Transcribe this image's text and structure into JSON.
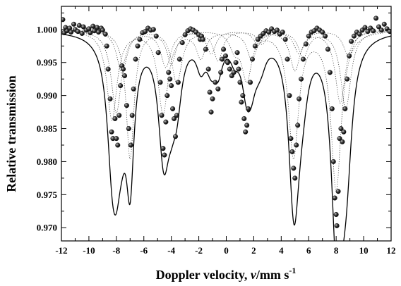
{
  "chart_data": {
    "type": "scatter",
    "xlabel": "Doppler velocity, ",
    "xlabel_var": "v",
    "xlabel_unit": "/mm s",
    "xlabel_sup": "-1",
    "ylabel": "Relative transmission",
    "xlim": [
      -12,
      12
    ],
    "ylim": [
      0.968,
      1.0035
    ],
    "x_ticks": [
      -12,
      -10,
      -8,
      -6,
      -4,
      -2,
      0,
      2,
      4,
      6,
      8,
      10,
      12
    ],
    "x_tick_labels": [
      "-12",
      "-10",
      "-8",
      "-6",
      "-4",
      "-2",
      "0",
      "2",
      "4",
      "6",
      "8",
      "10",
      "12"
    ],
    "y_ticks": [
      0.97,
      0.975,
      0.98,
      0.985,
      0.99,
      0.995,
      1.0
    ],
    "y_tick_labels": [
      "0.970",
      "0.975",
      "0.980",
      "0.985",
      "0.990",
      "0.995",
      "1.000"
    ],
    "fit_components": [
      {
        "lines": [
          [
            -8.32,
            0.0135,
            0.45
          ],
          [
            -4.6,
            0.0125,
            0.45
          ],
          [
            -1.85,
            0.004,
            0.4
          ],
          [
            1.85,
            0.004,
            0.4
          ],
          [
            4.9,
            0.019,
            0.45
          ],
          [
            8.0,
            0.024,
            0.45
          ]
        ]
      },
      {
        "lines": [
          [
            -8.0,
            0.0125,
            0.45
          ],
          [
            -4.4,
            0.0055,
            0.45
          ],
          [
            -1.1,
            0.0035,
            0.4
          ],
          [
            2.3,
            0.002,
            0.4
          ],
          [
            5.0,
            0.006,
            0.45
          ],
          [
            8.3,
            0.011,
            0.45
          ]
        ]
      },
      {
        "lines": [
          [
            -7.6,
            0.0065,
            0.45
          ],
          [
            -3.6,
            0.008,
            0.45
          ],
          [
            -0.6,
            0.0045,
            0.4
          ],
          [
            2.6,
            0.002,
            0.4
          ],
          [
            5.6,
            0.004,
            0.45
          ],
          [
            8.7,
            0.012,
            0.45
          ]
        ]
      },
      {
        "lines": [
          [
            -7.0,
            0.0195,
            0.35
          ],
          [
            -4.0,
            0.005,
            0.4
          ],
          [
            0.6,
            0.0025,
            0.4
          ],
          [
            1.5,
            0.0075,
            0.45
          ],
          [
            5.3,
            0.0035,
            0.45
          ],
          [
            8.9,
            0.004,
            0.45
          ]
        ]
      }
    ],
    "points": [
      {
        "x": -11.9,
        "y": 1.0015
      },
      {
        "x": -11.8,
        "y": 0.9995
      },
      {
        "x": -11.7,
        "y": 1.0003
      },
      {
        "x": -11.6,
        "y": 0.9998
      },
      {
        "x": -11.4,
        "y": 1.0002
      },
      {
        "x": -11.3,
        "y": 0.9996
      },
      {
        "x": -11.1,
        "y": 1.0008
      },
      {
        "x": -11.0,
        "y": 1.0
      },
      {
        "x": -10.8,
        "y": 0.9997
      },
      {
        "x": -10.7,
        "y": 1.0006
      },
      {
        "x": -10.5,
        "y": 0.9994
      },
      {
        "x": -10.4,
        "y": 1.0004
      },
      {
        "x": -10.2,
        "y": 0.9999
      },
      {
        "x": -10.0,
        "y": 1.0001
      },
      {
        "x": -9.9,
        "y": 0.9995
      },
      {
        "x": -9.7,
        "y": 1.0005
      },
      {
        "x": -9.6,
        "y": 0.9998
      },
      {
        "x": -9.4,
        "y": 1.0003
      },
      {
        "x": -9.3,
        "y": 0.9996
      },
      {
        "x": -9.1,
        "y": 1.0002
      },
      {
        "x": -9.0,
        "y": 0.9999
      },
      {
        "x": -8.8,
        "y": 0.9993
      },
      {
        "x": -8.7,
        "y": 0.9975
      },
      {
        "x": -8.6,
        "y": 0.994
      },
      {
        "x": -8.45,
        "y": 0.9895
      },
      {
        "x": -8.35,
        "y": 0.9845
      },
      {
        "x": -8.25,
        "y": 0.9835
      },
      {
        "x": -8.1,
        "y": 0.9865
      },
      {
        "x": -8.0,
        "y": 0.9835
      },
      {
        "x": -7.9,
        "y": 0.9825
      },
      {
        "x": -7.8,
        "y": 0.987
      },
      {
        "x": -7.7,
        "y": 0.9915
      },
      {
        "x": -7.6,
        "y": 0.9945
      },
      {
        "x": -7.5,
        "y": 0.994
      },
      {
        "x": -7.4,
        "y": 0.993
      },
      {
        "x": -7.25,
        "y": 0.9885
      },
      {
        "x": -7.1,
        "y": 0.985
      },
      {
        "x": -6.95,
        "y": 0.9825
      },
      {
        "x": -6.85,
        "y": 0.987
      },
      {
        "x": -6.75,
        "y": 0.991
      },
      {
        "x": -6.6,
        "y": 0.9955
      },
      {
        "x": -6.45,
        "y": 0.9975
      },
      {
        "x": -6.3,
        "y": 0.9985
      },
      {
        "x": -6.1,
        "y": 0.9995
      },
      {
        "x": -5.9,
        "y": 0.9997
      },
      {
        "x": -5.7,
        "y": 1.0002
      },
      {
        "x": -5.5,
        "y": 0.9999
      },
      {
        "x": -5.3,
        "y": 1.0
      },
      {
        "x": -5.1,
        "y": 0.999
      },
      {
        "x": -4.95,
        "y": 0.9965
      },
      {
        "x": -4.8,
        "y": 0.992
      },
      {
        "x": -4.7,
        "y": 0.987
      },
      {
        "x": -4.6,
        "y": 0.982
      },
      {
        "x": -4.5,
        "y": 0.981
      },
      {
        "x": -4.4,
        "y": 0.986
      },
      {
        "x": -4.3,
        "y": 0.99
      },
      {
        "x": -4.2,
        "y": 0.9935
      },
      {
        "x": -4.1,
        "y": 0.9925
      },
      {
        "x": -4.0,
        "y": 0.9915
      },
      {
        "x": -3.9,
        "y": 0.988
      },
      {
        "x": -3.8,
        "y": 0.9865
      },
      {
        "x": -3.7,
        "y": 0.9838
      },
      {
        "x": -3.6,
        "y": 0.987
      },
      {
        "x": -3.5,
        "y": 0.992
      },
      {
        "x": -3.4,
        "y": 0.9955
      },
      {
        "x": -3.2,
        "y": 0.998
      },
      {
        "x": -3.0,
        "y": 0.9992
      },
      {
        "x": -2.8,
        "y": 0.9998
      },
      {
        "x": -2.6,
        "y": 1.0001
      },
      {
        "x": -2.4,
        "y": 0.9999
      },
      {
        "x": -2.2,
        "y": 0.9996
      },
      {
        "x": -2.0,
        "y": 0.9992
      },
      {
        "x": -1.9,
        "y": 0.9985
      },
      {
        "x": -1.8,
        "y": 0.999
      },
      {
        "x": -1.7,
        "y": 0.9985
      },
      {
        "x": -1.5,
        "y": 0.997
      },
      {
        "x": -1.3,
        "y": 0.994
      },
      {
        "x": -1.2,
        "y": 0.9905
      },
      {
        "x": -1.1,
        "y": 0.9875
      },
      {
        "x": -1.0,
        "y": 0.9895
      },
      {
        "x": -0.8,
        "y": 0.992
      },
      {
        "x": -0.6,
        "y": 0.991
      },
      {
        "x": -0.4,
        "y": 0.9935
      },
      {
        "x": -0.3,
        "y": 0.9955
      },
      {
        "x": -0.2,
        "y": 0.997
      },
      {
        "x": -0.05,
        "y": 0.996
      },
      {
        "x": 0.1,
        "y": 0.995
      },
      {
        "x": 0.25,
        "y": 0.994
      },
      {
        "x": 0.4,
        "y": 0.993
      },
      {
        "x": 0.55,
        "y": 0.9935
      },
      {
        "x": 0.7,
        "y": 0.995
      },
      {
        "x": 0.8,
        "y": 0.9965
      },
      {
        "x": 0.9,
        "y": 0.994
      },
      {
        "x": 1.0,
        "y": 0.992
      },
      {
        "x": 1.1,
        "y": 0.989
      },
      {
        "x": 1.2,
        "y": 0.99
      },
      {
        "x": 1.3,
        "y": 0.9865
      },
      {
        "x": 1.4,
        "y": 0.9845
      },
      {
        "x": 1.5,
        "y": 0.9855
      },
      {
        "x": 1.6,
        "y": 0.988
      },
      {
        "x": 1.75,
        "y": 0.992
      },
      {
        "x": 1.9,
        "y": 0.9955
      },
      {
        "x": 2.1,
        "y": 0.9975
      },
      {
        "x": 2.3,
        "y": 0.9985
      },
      {
        "x": 2.5,
        "y": 0.999
      },
      {
        "x": 2.7,
        "y": 0.9994
      },
      {
        "x": 2.9,
        "y": 0.9998
      },
      {
        "x": 3.1,
        "y": 0.9996
      },
      {
        "x": 3.3,
        "y": 1.0001
      },
      {
        "x": 3.5,
        "y": 0.9997
      },
      {
        "x": 3.7,
        "y": 0.9999
      },
      {
        "x": 3.9,
        "y": 0.9993
      },
      {
        "x": 4.1,
        "y": 0.9996
      },
      {
        "x": 4.3,
        "y": 0.9985
      },
      {
        "x": 4.45,
        "y": 0.9955
      },
      {
        "x": 4.6,
        "y": 0.99
      },
      {
        "x": 4.7,
        "y": 0.9835
      },
      {
        "x": 4.8,
        "y": 0.9815
      },
      {
        "x": 4.9,
        "y": 0.979
      },
      {
        "x": 5.0,
        "y": 0.9775
      },
      {
        "x": 5.1,
        "y": 0.9825
      },
      {
        "x": 5.2,
        "y": 0.9855
      },
      {
        "x": 5.3,
        "y": 0.9895
      },
      {
        "x": 5.45,
        "y": 0.9925
      },
      {
        "x": 5.6,
        "y": 0.9955
      },
      {
        "x": 5.8,
        "y": 0.9978
      },
      {
        "x": 6.0,
        "y": 0.999
      },
      {
        "x": 6.2,
        "y": 0.9996
      },
      {
        "x": 6.4,
        "y": 0.9998
      },
      {
        "x": 6.6,
        "y": 1.0002
      },
      {
        "x": 6.8,
        "y": 0.9999
      },
      {
        "x": 7.0,
        "y": 0.9996
      },
      {
        "x": 7.2,
        "y": 0.999
      },
      {
        "x": 7.4,
        "y": 0.997
      },
      {
        "x": 7.55,
        "y": 0.9935
      },
      {
        "x": 7.7,
        "y": 0.988
      },
      {
        "x": 7.8,
        "y": 0.98
      },
      {
        "x": 7.9,
        "y": 0.9745
      },
      {
        "x": 8.0,
        "y": 0.972
      },
      {
        "x": 8.05,
        "y": 0.9703
      },
      {
        "x": 8.15,
        "y": 0.9755
      },
      {
        "x": 8.25,
        "y": 0.9835
      },
      {
        "x": 8.35,
        "y": 0.985
      },
      {
        "x": 8.45,
        "y": 0.983
      },
      {
        "x": 8.55,
        "y": 0.9845
      },
      {
        "x": 8.65,
        "y": 0.988
      },
      {
        "x": 8.8,
        "y": 0.9925
      },
      {
        "x": 8.95,
        "y": 0.996
      },
      {
        "x": 9.1,
        "y": 0.9982
      },
      {
        "x": 9.3,
        "y": 0.999
      },
      {
        "x": 9.5,
        "y": 0.9996
      },
      {
        "x": 9.7,
        "y": 0.9993
      },
      {
        "x": 9.9,
        "y": 0.9999
      },
      {
        "x": 10.1,
        "y": 1.0003
      },
      {
        "x": 10.3,
        "y": 0.9997
      },
      {
        "x": 10.5,
        "y": 1.0002
      },
      {
        "x": 10.7,
        "y": 0.9998
      },
      {
        "x": 10.9,
        "y": 1.0017
      },
      {
        "x": 11.1,
        "y": 1.0004
      },
      {
        "x": 11.3,
        "y": 0.9999
      },
      {
        "x": 11.5,
        "y": 1.0008
      },
      {
        "x": 11.7,
        "y": 1.0001
      },
      {
        "x": 11.9,
        "y": 0.9997
      }
    ]
  }
}
